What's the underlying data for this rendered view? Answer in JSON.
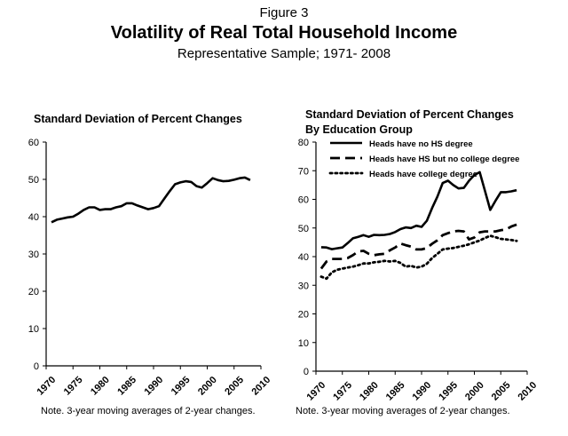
{
  "figure": {
    "number": "Figure 3",
    "title": "Volatility of Real Total Household Income",
    "subtitle": "Representative  Sample; 1971- 2008"
  },
  "chart_data": [
    {
      "type": "line",
      "title": "Standard Deviation of Percent Changes",
      "subtitle": "",
      "xlabel": "",
      "ylabel": "",
      "xlim": [
        1970,
        2010
      ],
      "ylim": [
        0,
        60
      ],
      "xticks": [
        1970,
        1975,
        1980,
        1985,
        1990,
        1995,
        2000,
        2005,
        2010
      ],
      "yticks": [
        0,
        10,
        20,
        30,
        40,
        50,
        60
      ],
      "grid": false,
      "note": "Note. 3-year moving averages of 2-year changes.",
      "x": [
        1971,
        1972,
        1973,
        1974,
        1975,
        1976,
        1977,
        1978,
        1979,
        1980,
        1981,
        1982,
        1983,
        1984,
        1985,
        1986,
        1987,
        1988,
        1989,
        1990,
        1991,
        1992,
        1993,
        1994,
        1995,
        1996,
        1997,
        1998,
        1999,
        2000,
        2001,
        2002,
        2003,
        2004,
        2005,
        2006,
        2007,
        2008
      ],
      "series": [
        {
          "name": "",
          "style": "solid",
          "values": [
            38.5,
            39.2,
            39.5,
            39.8,
            40.0,
            40.8,
            41.8,
            42.5,
            42.5,
            41.8,
            42.0,
            42.0,
            42.5,
            42.8,
            43.6,
            43.6,
            43.0,
            42.5,
            42.0,
            42.3,
            42.8,
            44.8,
            46.8,
            48.7,
            49.2,
            49.5,
            49.3,
            48.2,
            47.8,
            49.0,
            50.3,
            49.8,
            49.5,
            49.6,
            49.9,
            50.3,
            50.5,
            49.8
          ]
        }
      ]
    },
    {
      "type": "line",
      "title": "Standard Deviation of Percent Changes",
      "subtitle": "By Education Group",
      "xlabel": "",
      "ylabel": "",
      "xlim": [
        1970,
        2010
      ],
      "ylim": [
        0,
        80
      ],
      "xticks": [
        1970,
        1975,
        1980,
        1985,
        1990,
        1995,
        2000,
        2005,
        2010
      ],
      "yticks": [
        0,
        10,
        20,
        30,
        40,
        50,
        60,
        70,
        80
      ],
      "grid": false,
      "legend": "top-left",
      "note": "Note. 3-year moving averages of 2-year changes.",
      "x": [
        1971,
        1972,
        1973,
        1974,
        1975,
        1976,
        1977,
        1978,
        1979,
        1980,
        1981,
        1982,
        1983,
        1984,
        1985,
        1986,
        1987,
        1988,
        1989,
        1990,
        1991,
        1992,
        1993,
        1994,
        1995,
        1996,
        1997,
        1998,
        1999,
        2000,
        2001,
        2002,
        2003,
        2004,
        2005,
        2006,
        2007,
        2008
      ],
      "series": [
        {
          "name": "Heads have no HS degree",
          "style": "solid",
          "values": [
            43.3,
            43.2,
            42.6,
            42.9,
            43.2,
            44.7,
            46.4,
            46.9,
            47.5,
            46.9,
            47.6,
            47.5,
            47.6,
            47.9,
            48.6,
            49.6,
            50.2,
            50.0,
            50.8,
            50.4,
            52.5,
            57.0,
            61.0,
            65.7,
            66.5,
            65.0,
            63.8,
            64.0,
            66.5,
            68.5,
            69.5,
            63.0,
            56.3,
            59.5,
            62.5,
            62.5,
            62.8,
            63.2
          ]
        },
        {
          "name": "Heads have HS but no college degree",
          "style": "dashed",
          "values": [
            35.8,
            38.3,
            39.2,
            39.2,
            39.2,
            39.5,
            40.5,
            41.8,
            42.0,
            41.0,
            40.5,
            40.8,
            41.0,
            42.2,
            43.2,
            44.6,
            44.0,
            43.5,
            42.5,
            42.5,
            43.0,
            44.5,
            45.7,
            47.5,
            48.2,
            48.8,
            49.0,
            48.8,
            46.0,
            46.7,
            48.5,
            48.8,
            48.8,
            48.8,
            49.2,
            49.5,
            50.5,
            51.2
          ]
        },
        {
          "name": "Heads have college degree",
          "style": "dotted",
          "values": [
            33.0,
            32.3,
            34.5,
            35.4,
            35.8,
            36.2,
            36.5,
            37.0,
            37.6,
            37.6,
            38.0,
            38.2,
            38.5,
            38.3,
            38.5,
            37.8,
            36.5,
            36.8,
            36.2,
            36.5,
            37.5,
            39.5,
            41.0,
            42.5,
            42.8,
            43.0,
            43.4,
            43.8,
            44.3,
            45.0,
            45.6,
            46.5,
            47.3,
            46.8,
            46.2,
            46.0,
            45.8,
            45.5
          ]
        }
      ]
    }
  ]
}
